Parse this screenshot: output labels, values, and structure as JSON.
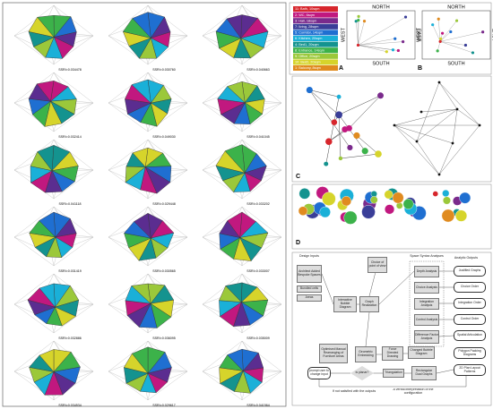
{
  "left_panel": {
    "labels": [
      "SSRI=0.034478",
      "SSRI=0.030760",
      "SSRI=0.040663",
      "SSRI=0.032414",
      "SSRI=0.049030",
      "SSRI=0.041045",
      "SSRI=0.041118",
      "SSRI=0.029448",
      "SSRI=0.033202",
      "SSRI=0.031419",
      "SSRI=0.030565",
      "SSRI=0.033007",
      "SSRI=0.032886",
      "SSRI=0.036095",
      "SSRI=0.035009",
      "SSRI=0.034534",
      "SSRI=0.029617",
      "SSRI=0.041564"
    ]
  },
  "legend": {
    "items": [
      "11: Bath, 10sqm",
      "2: WC, 6sqm",
      "3: Hall, 18sqm",
      "7: living, 28sqm",
      "5: Corridor, 14sqm",
      "6: Kitchen, 20sqm",
      "4: Bed1, 20sqm",
      "8: Entrance, 14sqm",
      "9: Office, 20sqm",
      "10: Bed2, 20sqm",
      "1: Balcony, 8sqm"
    ]
  },
  "panel_a": {
    "tag": "A",
    "north": "NORTH",
    "south": "SOUTH",
    "west": "WEST",
    "east": "EAST"
  },
  "panel_b": {
    "tag": "B",
    "north": "NORTH",
    "south": "SOUTH",
    "west": "WEST",
    "east": "EAST"
  },
  "panel_c": {
    "tag": "C"
  },
  "panel_d": {
    "tag": "D"
  },
  "flowchart": {
    "headers": [
      "Design Inputs",
      "Space Syntax Analyses",
      "Analytic Outputs"
    ],
    "nodes": [
      "Architect Added Bespoke Spaces",
      "Bundled cells",
      "Areas",
      "Choice of point of view",
      "Interactive Bubble Diagram",
      "Graph Realization",
      "Depth Analysis",
      "Choice Analysis",
      "Integration Analysis",
      "Control Analysis",
      "Difference Factor Analysis",
      "Justified Graphs",
      "Choice Order",
      "Integration Order",
      "Control Order",
      "Spatial Articulation",
      "Polygon Packing Diagrams",
      "2D Plan Layout Patterns",
      "Optimised Manual Rearranging of Furniture Areas",
      "Geometric Embedding",
      "Force Directed Drawing",
      "Changed Bubble Diagram",
      "prompt user to change input",
      "is planar?",
      "Triangulation",
      "Rectangular Dual Graphs"
    ],
    "notes": [
      "If not satisfied with the outputs",
      "A verbal interpretation of the configuration"
    ]
  }
}
